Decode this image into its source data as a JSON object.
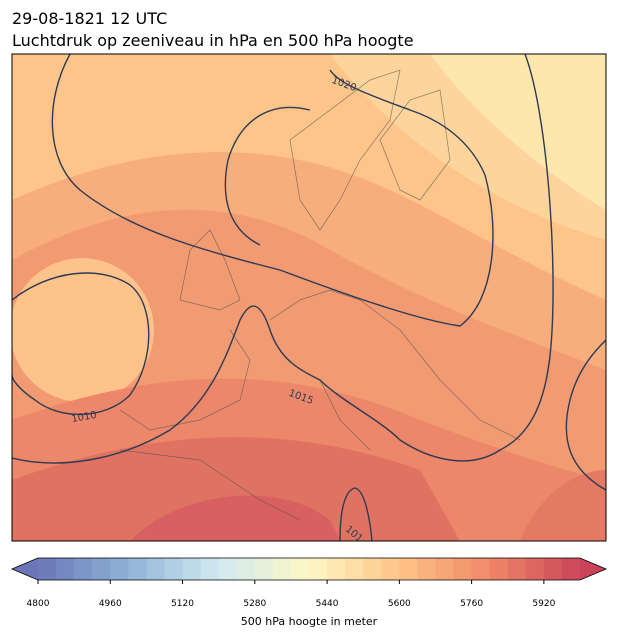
{
  "title": "29-08-1821 12 UTC",
  "subtitle": "Luchtdruk op zeeniveau in hPa en 500 hPa hoogte",
  "map": {
    "isobar_labels": [
      "1020",
      "1015",
      "1010",
      "101"
    ]
  },
  "colorbar": {
    "label": "500 hPa hoogte in meter",
    "range": [
      4800,
      6000
    ],
    "ticks": [
      4800,
      4960,
      5120,
      5280,
      5440,
      5600,
      5760,
      5920
    ]
  }
}
